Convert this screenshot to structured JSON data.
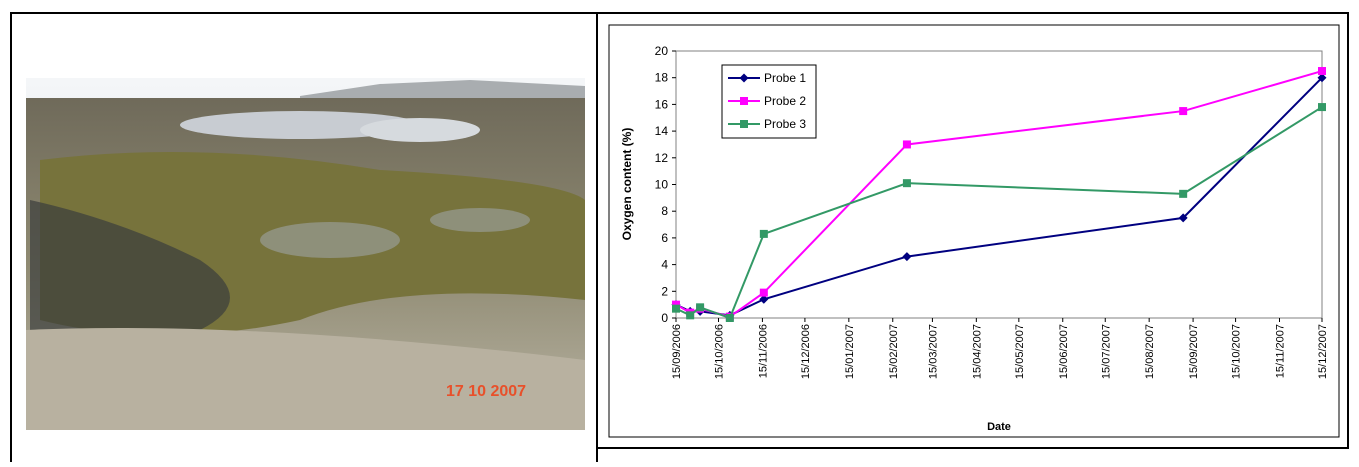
{
  "photo": {
    "timestamp": "17 10 2007"
  },
  "chart_data": {
    "type": "line",
    "x": [
      "2006-09-15",
      "2006-09-25",
      "2006-10-02",
      "2006-10-23",
      "2006-11-16",
      "2007-02-25",
      "2007-09-08",
      "2007-12-15"
    ],
    "series": [
      {
        "name": "Probe 1",
        "color": "#000080",
        "marker": "diamond",
        "values": [
          1.0,
          0.5,
          0.5,
          0.2,
          1.4,
          4.6,
          7.5,
          18.0
        ]
      },
      {
        "name": "Probe 2",
        "color": "#ff00ff",
        "marker": "square",
        "values": [
          1.0,
          0.4,
          0.7,
          0.1,
          1.9,
          13.0,
          15.5,
          18.5
        ]
      },
      {
        "name": "Probe 3",
        "color": "#339966",
        "marker": "square",
        "values": [
          0.7,
          0.2,
          0.8,
          0.0,
          6.3,
          10.1,
          9.3,
          15.8
        ]
      }
    ],
    "xlabel": "Date",
    "ylabel": "Oxygen content (%)",
    "xlim": [
      "2006-09-15",
      "2007-12-15"
    ],
    "xticks": [
      {
        "value": "2006-09-15",
        "label": "15/09/2006"
      },
      {
        "value": "2006-10-15",
        "label": "15/10/2006"
      },
      {
        "value": "2006-11-15",
        "label": "15/11/2006"
      },
      {
        "value": "2006-12-15",
        "label": "15/12/2006"
      },
      {
        "value": "2007-01-15",
        "label": "15/01/2007"
      },
      {
        "value": "2007-02-15",
        "label": "15/02/2007"
      },
      {
        "value": "2007-03-15",
        "label": "15/03/2007"
      },
      {
        "value": "2007-04-15",
        "label": "15/04/2007"
      },
      {
        "value": "2007-05-15",
        "label": "15/05/2007"
      },
      {
        "value": "2007-06-15",
        "label": "15/06/2007"
      },
      {
        "value": "2007-07-15",
        "label": "15/07/2007"
      },
      {
        "value": "2007-08-15",
        "label": "15/08/2007"
      },
      {
        "value": "2007-09-15",
        "label": "15/09/2007"
      },
      {
        "value": "2007-10-15",
        "label": "15/10/2007"
      },
      {
        "value": "2007-11-15",
        "label": "15/11/2007"
      },
      {
        "value": "2007-12-15",
        "label": "15/12/2007"
      }
    ],
    "ylim": [
      0,
      20
    ],
    "yticks": [
      0,
      2,
      4,
      6,
      8,
      10,
      12,
      14,
      16,
      18,
      20
    ],
    "legend": "upper-left",
    "grid": false
  }
}
